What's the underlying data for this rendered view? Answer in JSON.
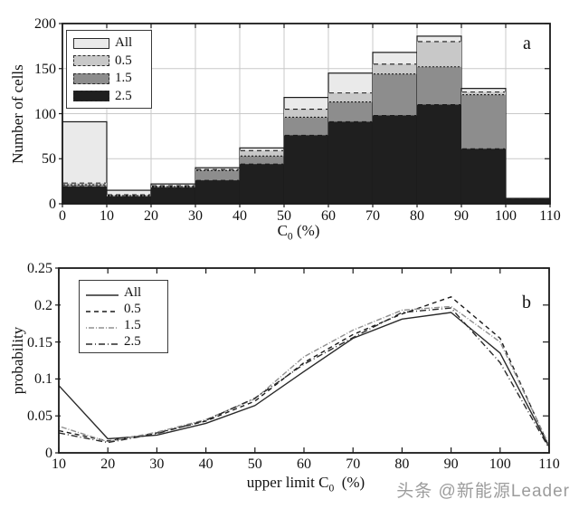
{
  "figure": {
    "panel_a_label": "a",
    "panel_b_label": "b",
    "watermark": "头条 @新能源Leader",
    "colors": {
      "axis": "#1a1a1a",
      "grid": "#c9c9c9",
      "watermark": "#9c9c9c"
    }
  },
  "chart_data": [
    {
      "type": "bar",
      "panel": "a",
      "title": "",
      "xlabel": {
        "pre": "C",
        "sub": "0",
        "post": " (%)"
      },
      "ylabel": "Number of cells",
      "xlim": [
        0,
        110
      ],
      "ylim": [
        0,
        200
      ],
      "xticks": [
        0,
        10,
        20,
        30,
        40,
        50,
        60,
        70,
        80,
        90,
        100,
        110
      ],
      "yticks": [
        0,
        50,
        100,
        150,
        200
      ],
      "grid": true,
      "legend_position": "top-left",
      "bin_edges": [
        0,
        10,
        20,
        30,
        40,
        50,
        60,
        70,
        80,
        90,
        100,
        110
      ],
      "series": [
        {
          "name": "All",
          "fill": "#eaeaea",
          "edge": "solid",
          "values": [
            91,
            15,
            22,
            40,
            62,
            118,
            145,
            168,
            186,
            128,
            6
          ]
        },
        {
          "name": "0.5",
          "fill": "#c8c8c8",
          "edge": "dashed",
          "values": [
            23,
            10,
            20,
            38,
            59,
            105,
            123,
            155,
            180,
            124,
            6
          ]
        },
        {
          "name": "1.5",
          "fill": "#8d8d8d",
          "edge": "dotted",
          "values": [
            21,
            9,
            19,
            37,
            53,
            96,
            113,
            144,
            152,
            121,
            6
          ]
        },
        {
          "name": "2.5",
          "fill": "#1f1f1f",
          "edge": "dashed",
          "values": [
            19,
            8,
            18,
            26,
            44,
            76,
            91,
            98,
            110,
            61,
            6
          ]
        }
      ]
    },
    {
      "type": "line",
      "panel": "b",
      "title": "",
      "xlabel": {
        "pre": "upper limit C",
        "sub": "0",
        "post": "  (%)"
      },
      "ylabel": "probability",
      "xlim": [
        10,
        110
      ],
      "ylim": [
        0,
        0.25
      ],
      "xticks": [
        10,
        20,
        30,
        40,
        50,
        60,
        70,
        80,
        90,
        100,
        110
      ],
      "yticks": [
        0,
        0.05,
        0.1,
        0.15,
        0.2,
        0.25
      ],
      "ytick_labels": [
        "0",
        "0.05",
        "0.1",
        "0.15",
        "0.2",
        "0.25"
      ],
      "grid": false,
      "legend_position": "top-left",
      "x": [
        10,
        20,
        30,
        40,
        50,
        60,
        70,
        80,
        90,
        100,
        110
      ],
      "series": [
        {
          "name": "All",
          "style": "solid",
          "color": "#2a2a2a",
          "values": [
            0.091,
            0.019,
            0.024,
            0.04,
            0.064,
            0.11,
            0.155,
            0.181,
            0.19,
            0.135,
            0.008
          ]
        },
        {
          "name": "0.5",
          "style": "dashed",
          "color": "#1a1a1a",
          "values": [
            0.03,
            0.016,
            0.027,
            0.043,
            0.07,
            0.122,
            0.16,
            0.188,
            0.211,
            0.155,
            0.008
          ]
        },
        {
          "name": "1.5",
          "style": "dashdot-fine",
          "color": "#8f8f8f",
          "values": [
            0.036,
            0.015,
            0.028,
            0.045,
            0.073,
            0.13,
            0.166,
            0.193,
            0.198,
            0.15,
            0.01
          ]
        },
        {
          "name": "2.5",
          "style": "dashdot",
          "color": "#2a2a2a",
          "values": [
            0.027,
            0.014,
            0.026,
            0.044,
            0.074,
            0.12,
            0.156,
            0.19,
            0.196,
            0.122,
            0.006
          ]
        }
      ]
    }
  ]
}
